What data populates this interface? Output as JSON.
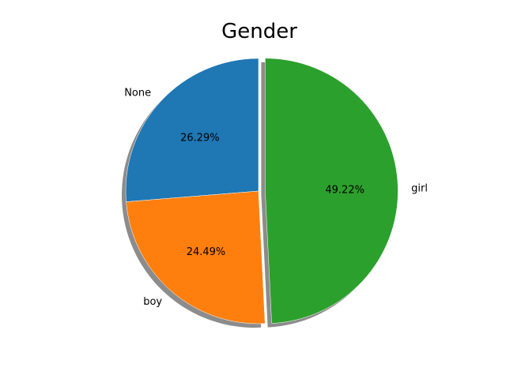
{
  "chart_data": {
    "type": "pie",
    "title": "Gender",
    "categories": [
      "None",
      "boy",
      "girl"
    ],
    "values": [
      26.29,
      24.49,
      49.22
    ],
    "percent_labels": [
      "26.29%",
      "24.49%",
      "49.22%"
    ],
    "explode": [
      0,
      0,
      0.05
    ],
    "shadow": true,
    "start_angle_deg": 90,
    "colors": [
      "#1f77b4",
      "#ff7f0e",
      "#2ca02c"
    ]
  }
}
